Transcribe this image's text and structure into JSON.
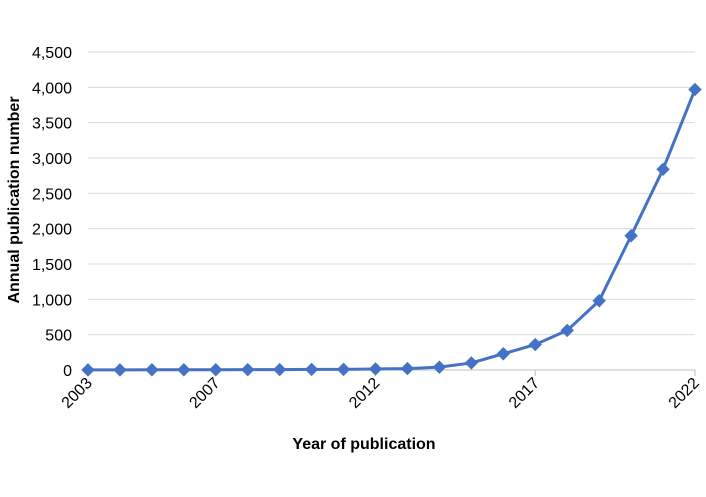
{
  "chart_data": {
    "type": "line",
    "title": "",
    "xlabel": "Year of publication",
    "ylabel": "Annual publication number",
    "x_tick_labels": [
      "2003",
      "2007",
      "2012",
      "2017",
      "2022"
    ],
    "y_tick_labels": [
      "0",
      "500",
      "1,000",
      "1,500",
      "2,000",
      "2,500",
      "3,000",
      "3,500",
      "4,000",
      "4,500"
    ],
    "ylim": [
      0,
      4500
    ],
    "xlim": [
      2003,
      2022
    ],
    "grid": "horizontal",
    "legend": "none",
    "series": [
      {
        "color": "#4472c4",
        "marker": "diamond",
        "x": [
          2003,
          2004,
          2005,
          2006,
          2007,
          2008,
          2009,
          2010,
          2011,
          2012,
          2013,
          2014,
          2015,
          2016,
          2017,
          2018,
          2019,
          2020,
          2021,
          2022
        ],
        "values": [
          2,
          2,
          3,
          3,
          4,
          5,
          6,
          8,
          9,
          15,
          20,
          40,
          100,
          230,
          360,
          560,
          980,
          1900,
          2840,
          3970
        ]
      }
    ]
  }
}
